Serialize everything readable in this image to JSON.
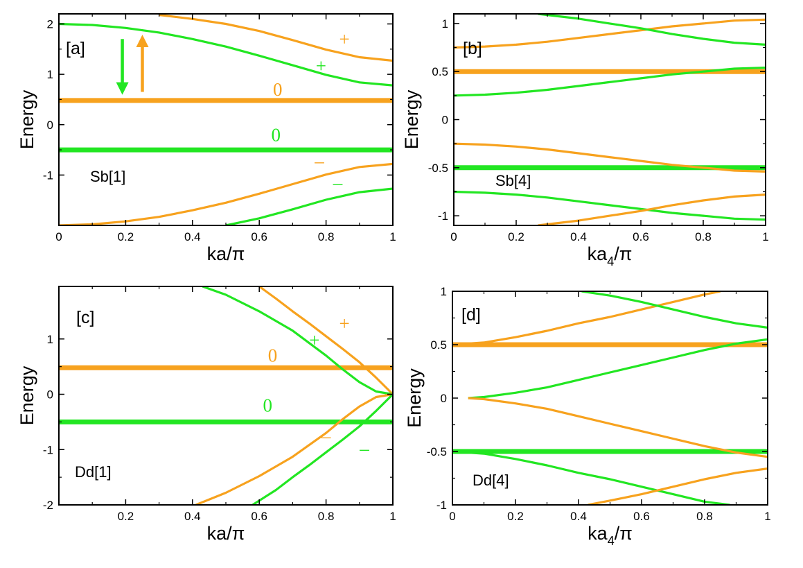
{
  "colors": {
    "green": "#22e622",
    "orange": "#f7a21e",
    "frame": "#000000"
  },
  "chart_data": [
    {
      "type": "line",
      "panel_label": "[a]",
      "name_label": "Sb[1]",
      "xlabel_main": "ka/",
      "xlabel_sub": "",
      "xlabel_tail": "π",
      "ylabel": "Energy",
      "xlim": [
        0,
        1
      ],
      "ylim": [
        -2,
        2.2
      ],
      "xticks": [
        "0",
        "0.2",
        "0.4",
        "0.6",
        "0.8",
        "1"
      ],
      "xtick_values": [
        0,
        0.2,
        0.4,
        0.6,
        0.8,
        1
      ],
      "yticks": [
        "-1",
        "0",
        "1",
        "2"
      ],
      "ytick_values": [
        -1,
        0,
        1,
        2
      ],
      "series": [
        {
          "name": "orange flat band 0",
          "color": "orange",
          "thick": true,
          "x": [
            0,
            1
          ],
          "y": [
            0.48,
            0.48
          ]
        },
        {
          "name": "green flat band 0",
          "color": "green",
          "thick": true,
          "x": [
            0,
            1
          ],
          "y": [
            -0.5,
            -0.5
          ]
        },
        {
          "name": "green upper band +",
          "color": "green",
          "x": [
            0,
            0.1,
            0.2,
            0.3,
            0.4,
            0.5,
            0.6,
            0.7,
            0.8,
            0.9,
            1
          ],
          "y": [
            2.0,
            1.98,
            1.92,
            1.83,
            1.7,
            1.55,
            1.37,
            1.18,
            0.99,
            0.84,
            0.78
          ]
        },
        {
          "name": "orange upper band +",
          "color": "orange",
          "x": [
            0.3,
            0.4,
            0.5,
            0.6,
            0.7,
            0.8,
            0.9,
            1
          ],
          "y": [
            2.18,
            2.1,
            2.0,
            1.86,
            1.68,
            1.49,
            1.34,
            1.27
          ]
        },
        {
          "name": "orange lower band -",
          "color": "orange",
          "x": [
            0,
            0.1,
            0.2,
            0.3,
            0.4,
            0.5,
            0.6,
            0.7,
            0.8,
            0.9,
            1
          ],
          "y": [
            -2.0,
            -1.98,
            -1.92,
            -1.83,
            -1.7,
            -1.55,
            -1.37,
            -1.18,
            -0.99,
            -0.84,
            -0.78
          ]
        },
        {
          "name": "green lower band -",
          "color": "green",
          "x": [
            0.5,
            0.6,
            0.7,
            0.8,
            0.9,
            1
          ],
          "y": [
            -2.0,
            -1.86,
            -1.68,
            -1.49,
            -1.34,
            -1.27
          ]
        }
      ],
      "annotations": [
        {
          "text": "+",
          "color": "orange",
          "x": 0.855,
          "y": 1.7
        },
        {
          "text": "+",
          "color": "green",
          "x": 0.785,
          "y": 1.17
        },
        {
          "text": "0",
          "color": "orange",
          "x": 0.655,
          "y": 0.7
        },
        {
          "text": "0",
          "color": "green",
          "x": 0.65,
          "y": -0.2
        },
        {
          "text": "–",
          "color": "orange",
          "x": 0.78,
          "y": -0.72
        },
        {
          "text": "–",
          "color": "green",
          "x": 0.835,
          "y": -1.15
        }
      ],
      "arrows": [
        {
          "name": "down-arrow",
          "color": "green",
          "x": 0.19,
          "y_from": 1.7,
          "y_to": 0.68
        },
        {
          "name": "up-arrow",
          "color": "orange",
          "x": 0.25,
          "y_from": 0.65,
          "y_to": 1.7
        }
      ]
    },
    {
      "type": "line",
      "panel_label": "[b]",
      "name_label": "Sb[4]",
      "xlabel_main": "ka",
      "xlabel_sub": "4",
      "xlabel_tail": "/π",
      "ylabel": "Energy",
      "xlim": [
        0,
        1
      ],
      "ylim": [
        -1.1,
        1.1
      ],
      "xticks": [
        "0",
        "0.2",
        "0.4",
        "0.6",
        "0.8",
        "1"
      ],
      "xtick_values": [
        0,
        0.2,
        0.4,
        0.6,
        0.8,
        1
      ],
      "yticks": [
        "-1",
        "-0.5",
        "0",
        "0.5",
        "1"
      ],
      "ytick_values": [
        -1,
        -0.5,
        0,
        0.5,
        1
      ],
      "series": [
        {
          "name": "orange flat band 0.5",
          "color": "orange",
          "thick": true,
          "x": [
            0,
            1
          ],
          "y": [
            0.5,
            0.5
          ]
        },
        {
          "name": "green flat band -0.5",
          "color": "green",
          "thick": true,
          "x": [
            0,
            1
          ],
          "y": [
            -0.5,
            -0.5
          ]
        },
        {
          "name": "orange top band",
          "color": "orange",
          "x": [
            0,
            0.1,
            0.2,
            0.3,
            0.4,
            0.5,
            0.6,
            0.7,
            0.8,
            0.9,
            1
          ],
          "y": [
            0.75,
            0.76,
            0.78,
            0.81,
            0.85,
            0.89,
            0.93,
            0.97,
            1.0,
            1.03,
            1.04
          ]
        },
        {
          "name": "green top band",
          "color": "green",
          "x": [
            0.27,
            0.4,
            0.5,
            0.6,
            0.7,
            0.8,
            0.9,
            1
          ],
          "y": [
            1.1,
            1.05,
            1.0,
            0.95,
            0.89,
            0.84,
            0.8,
            0.78
          ]
        },
        {
          "name": "green middle band",
          "color": "green",
          "x": [
            0,
            0.1,
            0.2,
            0.3,
            0.4,
            0.5,
            0.6,
            0.7,
            0.8,
            0.9,
            1
          ],
          "y": [
            0.25,
            0.26,
            0.28,
            0.31,
            0.35,
            0.39,
            0.43,
            0.47,
            0.5,
            0.53,
            0.54
          ]
        },
        {
          "name": "orange middle band",
          "color": "orange",
          "x": [
            0,
            0.1,
            0.2,
            0.3,
            0.4,
            0.5,
            0.6,
            0.7,
            0.8,
            0.9,
            1
          ],
          "y": [
            -0.25,
            -0.26,
            -0.28,
            -0.31,
            -0.35,
            -0.39,
            -0.43,
            -0.47,
            -0.5,
            -0.53,
            -0.54
          ]
        },
        {
          "name": "green bottom band",
          "color": "green",
          "x": [
            0,
            0.1,
            0.2,
            0.3,
            0.4,
            0.5,
            0.6,
            0.7,
            0.8,
            0.9,
            1
          ],
          "y": [
            -0.75,
            -0.76,
            -0.78,
            -0.81,
            -0.85,
            -0.89,
            -0.93,
            -0.97,
            -1.0,
            -1.03,
            -1.04
          ]
        },
        {
          "name": "orange bottom band",
          "color": "orange",
          "x": [
            0.27,
            0.4,
            0.5,
            0.6,
            0.7,
            0.8,
            0.9,
            1
          ],
          "y": [
            -1.1,
            -1.05,
            -1.0,
            -0.95,
            -0.89,
            -0.84,
            -0.8,
            -0.78
          ]
        }
      ],
      "annotations": [],
      "arrows": []
    },
    {
      "type": "line",
      "panel_label": "[c]",
      "name_label": "Dd[1]",
      "xlabel_main": "ka/",
      "xlabel_sub": "",
      "xlabel_tail": "π",
      "ylabel": "Energy",
      "xlim": [
        0,
        1
      ],
      "ylim": [
        -2,
        1.95
      ],
      "xticks": [
        "0.2",
        "0.4",
        "0.6",
        "0.8",
        "1"
      ],
      "xtick_values": [
        0.2,
        0.4,
        0.6,
        0.8,
        1
      ],
      "yticks": [
        "-2",
        "-1",
        "0",
        "1"
      ],
      "ytick_values": [
        -2,
        -1,
        0,
        1
      ],
      "series": [
        {
          "name": "orange flat band 0",
          "color": "orange",
          "thick": true,
          "x": [
            0,
            1
          ],
          "y": [
            0.48,
            0.48
          ]
        },
        {
          "name": "green flat band 0",
          "color": "green",
          "thick": true,
          "x": [
            0,
            1
          ],
          "y": [
            -0.5,
            -0.5
          ]
        },
        {
          "name": "orange upper band +",
          "color": "orange",
          "x": [
            0.6,
            0.65,
            0.7,
            0.75,
            0.8,
            0.85,
            0.9,
            0.95,
            1
          ],
          "y": [
            1.95,
            1.73,
            1.5,
            1.28,
            1.05,
            0.82,
            0.58,
            0.3,
            0.0
          ]
        },
        {
          "name": "green upper band +",
          "color": "green",
          "x": [
            0.43,
            0.5,
            0.6,
            0.7,
            0.8,
            0.85,
            0.9,
            0.95,
            1
          ],
          "y": [
            1.95,
            1.8,
            1.5,
            1.15,
            0.7,
            0.45,
            0.22,
            0.05,
            0.0
          ]
        },
        {
          "name": "orange lower band -",
          "color": "orange",
          "x": [
            0.41,
            0.5,
            0.6,
            0.7,
            0.8,
            0.85,
            0.9,
            0.95,
            1
          ],
          "y": [
            -2.0,
            -1.78,
            -1.48,
            -1.13,
            -0.7,
            -0.45,
            -0.22,
            -0.05,
            0.0
          ]
        },
        {
          "name": "green lower band -",
          "color": "green",
          "x": [
            0.58,
            0.65,
            0.7,
            0.75,
            0.8,
            0.85,
            0.9,
            0.95,
            1
          ],
          "y": [
            -2.0,
            -1.73,
            -1.5,
            -1.28,
            -1.05,
            -0.82,
            -0.58,
            -0.3,
            0.0
          ]
        }
      ],
      "annotations": [
        {
          "text": "+",
          "color": "orange",
          "x": 0.855,
          "y": 1.28
        },
        {
          "text": "+",
          "color": "green",
          "x": 0.765,
          "y": 0.98
        },
        {
          "text": "0",
          "color": "orange",
          "x": 0.64,
          "y": 0.7
        },
        {
          "text": "0",
          "color": "green",
          "x": 0.625,
          "y": -0.2
        },
        {
          "text": "–",
          "color": "orange",
          "x": 0.8,
          "y": -0.75
        },
        {
          "text": "–",
          "color": "green",
          "x": 0.915,
          "y": -0.98
        }
      ],
      "arrows": []
    },
    {
      "type": "line",
      "panel_label": "[d]",
      "name_label": "Dd[4]",
      "xlabel_main": "ka",
      "xlabel_sub": "4",
      "xlabel_tail": "/π",
      "ylabel": "Energy",
      "xlim": [
        0,
        1
      ],
      "ylim": [
        -1,
        1
      ],
      "xticks": [
        "0",
        "0.2",
        "0.4",
        "0.6",
        "0.8",
        "1"
      ],
      "xtick_values": [
        0,
        0.2,
        0.4,
        0.6,
        0.8,
        1
      ],
      "yticks": [
        "-1",
        "-0.5",
        "0",
        "0.5",
        "1"
      ],
      "ytick_values": [
        -1,
        -0.5,
        0,
        0.5,
        1
      ],
      "series": [
        {
          "name": "orange flat band 0.5",
          "color": "orange",
          "thick": true,
          "x": [
            0,
            1
          ],
          "y": [
            0.5,
            0.5
          ]
        },
        {
          "name": "green flat band -0.5",
          "color": "green",
          "thick": true,
          "x": [
            0,
            1
          ],
          "y": [
            -0.5,
            -0.5
          ]
        },
        {
          "name": "orange top band",
          "color": "orange",
          "x": [
            0,
            0.1,
            0.2,
            0.3,
            0.4,
            0.5,
            0.6,
            0.7,
            0.8,
            0.85
          ],
          "y": [
            0.5,
            0.52,
            0.57,
            0.63,
            0.7,
            0.76,
            0.83,
            0.9,
            0.97,
            1.0
          ]
        },
        {
          "name": "green top band",
          "color": "green",
          "x": [
            0.41,
            0.5,
            0.6,
            0.7,
            0.8,
            0.9,
            1
          ],
          "y": [
            1.0,
            0.96,
            0.9,
            0.83,
            0.76,
            0.7,
            0.66
          ]
        },
        {
          "name": "green middle band",
          "color": "green",
          "x": [
            0.05,
            0.1,
            0.2,
            0.3,
            0.4,
            0.5,
            0.6,
            0.7,
            0.8,
            0.9,
            1
          ],
          "y": [
            0.0,
            0.01,
            0.05,
            0.1,
            0.17,
            0.24,
            0.31,
            0.38,
            0.45,
            0.51,
            0.55
          ]
        },
        {
          "name": "orange middle band",
          "color": "orange",
          "x": [
            0.05,
            0.1,
            0.2,
            0.3,
            0.4,
            0.5,
            0.6,
            0.7,
            0.8,
            0.9,
            1
          ],
          "y": [
            0.0,
            -0.01,
            -0.05,
            -0.1,
            -0.17,
            -0.24,
            -0.31,
            -0.38,
            -0.45,
            -0.51,
            -0.55
          ]
        },
        {
          "name": "green bottom band",
          "color": "green",
          "x": [
            0,
            0.1,
            0.2,
            0.3,
            0.4,
            0.5,
            0.6,
            0.7,
            0.8,
            0.88
          ],
          "y": [
            -0.5,
            -0.52,
            -0.57,
            -0.63,
            -0.7,
            -0.76,
            -0.83,
            -0.9,
            -0.97,
            -1.0
          ]
        },
        {
          "name": "orange bottom band",
          "color": "orange",
          "x": [
            0.43,
            0.5,
            0.6,
            0.7,
            0.8,
            0.9,
            1
          ],
          "y": [
            -1.0,
            -0.96,
            -0.9,
            -0.83,
            -0.76,
            -0.7,
            -0.66
          ]
        }
      ],
      "annotations": [],
      "arrows": []
    }
  ]
}
